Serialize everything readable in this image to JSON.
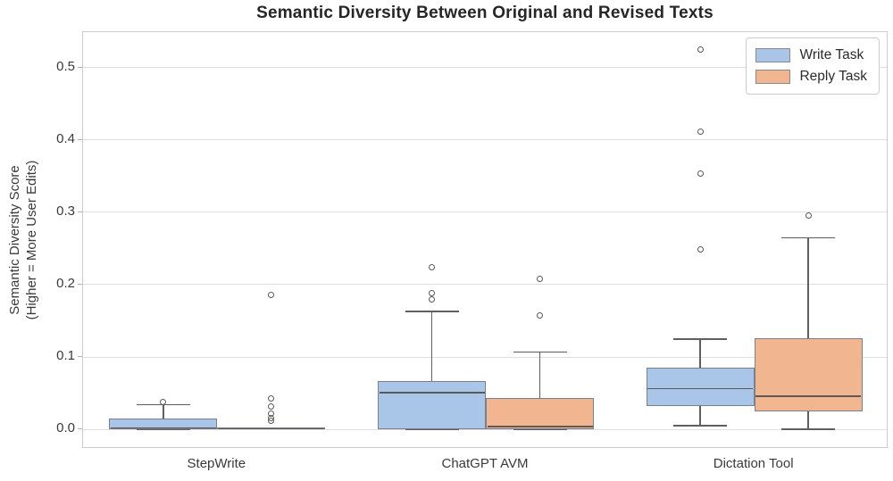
{
  "title": "Semantic Diversity Between Original and Revised Texts",
  "ylabel": {
    "line1": "Semantic Diversity Score",
    "line2": "(Higher = More User Edits)"
  },
  "legend": {
    "items": [
      {
        "label": "Write Task",
        "color": "#a9c6e8"
      },
      {
        "label": "Reply Task",
        "color": "#f1b68f"
      }
    ]
  },
  "chart_data": {
    "type": "boxplot",
    "categories": [
      "StepWrite",
      "ChatGPT AVM",
      "Dictation Tool"
    ],
    "series": [
      {
        "name": "Write Task",
        "color": "#a9c6e8",
        "boxes": [
          {
            "whisker_low": 0.0,
            "q1": 0.0,
            "median": 0.002,
            "q3": 0.015,
            "whisker_high": 0.034,
            "outliers": [
              0.038
            ]
          },
          {
            "whisker_low": 0.0,
            "q1": 0.0,
            "median": 0.051,
            "q3": 0.067,
            "whisker_high": 0.163,
            "outliers": [
              0.18,
              0.188,
              0.224
            ]
          },
          {
            "whisker_low": 0.005,
            "q1": 0.032,
            "median": 0.056,
            "q3": 0.085,
            "whisker_high": 0.125,
            "outliers": [
              0.249,
              0.353,
              0.412,
              0.525
            ]
          }
        ]
      },
      {
        "name": "Reply Task",
        "color": "#f1b68f",
        "boxes": [
          {
            "whisker_low": 0.001,
            "q1": 0.001,
            "median": 0.001,
            "q3": 0.002,
            "whisker_high": 0.002,
            "outliers": [
              0.012,
              0.016,
              0.022,
              0.031,
              0.043,
              0.186
            ]
          },
          {
            "whisker_low": 0.0,
            "q1": 0.0,
            "median": 0.004,
            "q3": 0.043,
            "whisker_high": 0.107,
            "outliers": [
              0.158,
              0.208
            ]
          },
          {
            "whisker_low": 0.0,
            "q1": 0.025,
            "median": 0.046,
            "q3": 0.126,
            "whisker_high": 0.265,
            "outliers": [
              0.295
            ]
          }
        ]
      }
    ],
    "ylabel": "Semantic Diversity Score (Higher = More User Edits)",
    "yticks": [
      "0.0",
      "0.1",
      "0.2",
      "0.3",
      "0.4",
      "0.5"
    ],
    "ytick_values": [
      0.0,
      0.1,
      0.2,
      0.3,
      0.4,
      0.5
    ],
    "ylim": [
      -0.027,
      0.549
    ],
    "grid": true,
    "legend_position": "upper right",
    "style": {
      "grid_color": "#dedede",
      "border_color": "#cccccc",
      "box_edge_color": "#7a8089",
      "whisker_color": "#5f5f5f",
      "median_color": "#5a5a5a",
      "flier_edge_color": "#585858"
    }
  }
}
